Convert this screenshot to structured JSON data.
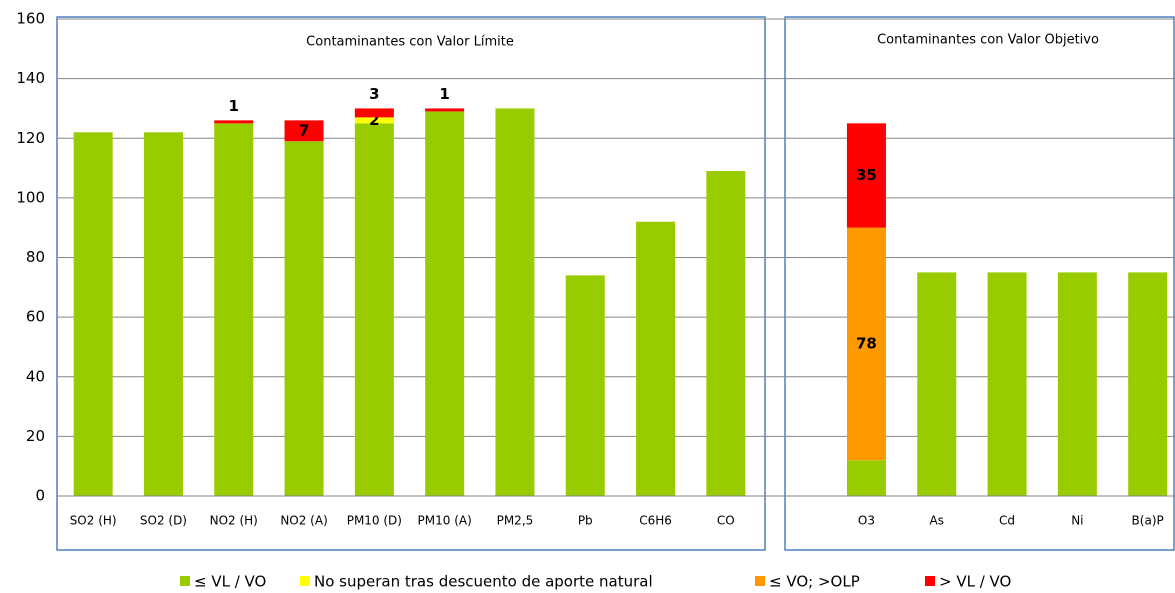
{
  "chart_data": {
    "type": "stacked_bar",
    "panel_titles": [
      "Contaminantes con Valor Límite",
      "Contaminantes con Valor Objetivo"
    ],
    "categories": [
      "SO2 (H)",
      "SO2 (D)",
      "NO2 (H)",
      "NO2 (A)",
      "PM10 (D)",
      "PM10 (A)",
      "PM2,5",
      "Pb",
      "C6H6",
      "CO",
      null,
      "O3",
      "As",
      "Cd",
      "Ni",
      "B(a)P"
    ],
    "series": [
      {
        "name": "≤ VL / VO",
        "color": "#99cc00",
        "values": [
          122,
          122,
          125,
          119,
          125,
          129,
          130,
          74,
          92,
          109,
          null,
          12,
          75,
          75,
          75,
          75
        ]
      },
      {
        "name": "No superan tras descuento de aporte natural",
        "color": "#ffff00",
        "values": [
          null,
          null,
          null,
          null,
          2,
          null,
          null,
          null,
          null,
          null,
          null,
          null,
          null,
          null,
          null,
          null
        ]
      },
      {
        "name": "≤ VO; >OLP",
        "color": "#ff9900",
        "values": [
          null,
          null,
          null,
          null,
          null,
          null,
          null,
          null,
          null,
          null,
          null,
          78,
          null,
          null,
          null,
          null
        ]
      },
      {
        "name": "> VL / VO",
        "color": "#ff0000",
        "values": [
          null,
          null,
          1,
          7,
          3,
          1,
          null,
          null,
          null,
          null,
          null,
          35,
          null,
          null,
          null,
          null
        ]
      }
    ],
    "ylim": [
      0,
      160
    ],
    "yticks": [
      0,
      20,
      40,
      60,
      80,
      100,
      120,
      140,
      160
    ],
    "grid": true
  }
}
